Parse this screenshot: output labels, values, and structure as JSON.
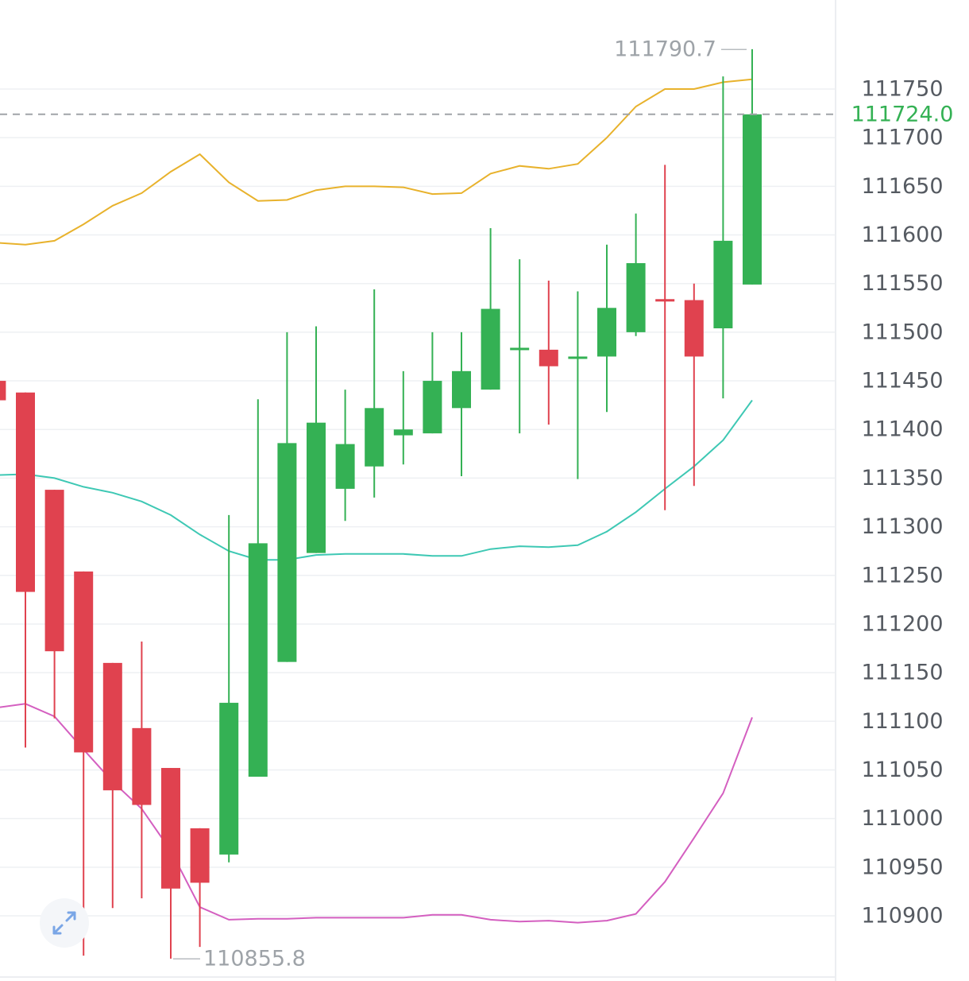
{
  "chart_data": {
    "type": "candlestick",
    "yaxis": {
      "ticks": [
        111750,
        111700,
        111650,
        111600,
        111550,
        111500,
        111450,
        111400,
        111350,
        111300,
        111250,
        111200,
        111150,
        111100,
        111050,
        111000,
        110950,
        110900
      ],
      "tick_labels": [
        "111750",
        "111700",
        "111650",
        "111600",
        "111550",
        "111500",
        "111450",
        "111400",
        "111350",
        "111300",
        "111250",
        "111200",
        "111150",
        "111100",
        "111050",
        "111000",
        "110950",
        "110900"
      ],
      "position": "right",
      "ylim": [
        110835,
        111835
      ]
    },
    "grid": true,
    "candles": [
      {
        "open": 111450,
        "close": 111430,
        "high": 111450,
        "low": 111430
      },
      {
        "open": 111438,
        "close": 111233,
        "high": 111438,
        "low": 111073
      },
      {
        "open": 111338,
        "close": 111172,
        "high": 111338,
        "low": 111103
      },
      {
        "open": 111254,
        "close": 111068,
        "high": 111254,
        "low": 110859
      },
      {
        "open": 111160,
        "close": 111029,
        "high": 111160,
        "low": 110908
      },
      {
        "open": 111093,
        "close": 111014,
        "high": 111182,
        "low": 110918
      },
      {
        "open": 111052,
        "close": 110928,
        "high": 111052,
        "low": 110856
      },
      {
        "open": 110990,
        "close": 110934,
        "high": 110990,
        "low": 110868
      },
      {
        "open": 110963,
        "close": 111119,
        "high": 111312,
        "low": 110955
      },
      {
        "open": 111043,
        "close": 111283,
        "high": 111431,
        "low": 111043
      },
      {
        "open": 111161,
        "close": 111386,
        "high": 111500,
        "low": 111161
      },
      {
        "open": 111273,
        "close": 111407,
        "high": 111506,
        "low": 111273
      },
      {
        "open": 111339,
        "close": 111385,
        "high": 111441,
        "low": 111306
      },
      {
        "open": 111362,
        "close": 111422,
        "high": 111544,
        "low": 111330
      },
      {
        "open": 111394,
        "close": 111400,
        "high": 111460,
        "low": 111364
      },
      {
        "open": 111396,
        "close": 111450,
        "high": 111500,
        "low": 111396
      },
      {
        "open": 111422,
        "close": 111460,
        "high": 111500,
        "low": 111352
      },
      {
        "open": 111441,
        "close": 111524,
        "high": 111607,
        "low": 111441
      },
      {
        "open": 111483,
        "close": 111484,
        "high": 111575,
        "low": 111396
      },
      {
        "open": 111482,
        "close": 111465,
        "high": 111553,
        "low": 111405
      },
      {
        "open": 111474,
        "close": 111475,
        "high": 111542,
        "low": 111349
      },
      {
        "open": 111475,
        "close": 111525,
        "high": 111590,
        "low": 111418
      },
      {
        "open": 111500,
        "close": 111571,
        "high": 111622,
        "low": 111496
      },
      {
        "open": 111534,
        "close": 111532,
        "high": 111672,
        "low": 111317
      },
      {
        "open": 111533,
        "close": 111475,
        "high": 111550,
        "low": 111342
      },
      {
        "open": 111504,
        "close": 111594,
        "high": 111763,
        "low": 111432
      },
      {
        "open": 111549,
        "close": 111724,
        "high": 111791,
        "low": 111549
      }
    ],
    "upper_band": [
      111592,
      111590,
      111594,
      111611,
      111630,
      111643,
      111665,
      111683,
      111654,
      111635,
      111636,
      111646,
      111650,
      111650,
      111649,
      111642,
      111643,
      111663,
      111671,
      111668,
      111673,
      111700,
      111732,
      111750,
      111750,
      111757,
      111760
    ],
    "middle_band": [
      111353,
      111354,
      111350,
      111341,
      111335,
      111326,
      111312,
      111292,
      111275,
      111266,
      111266,
      111271,
      111272,
      111272,
      111272,
      111270,
      111270,
      111277,
      111280,
      111279,
      111281,
      111295,
      111315,
      111339,
      111362,
      111389,
      111430
    ],
    "lower_band": [
      111114,
      111118,
      111105,
      111071,
      111038,
      111010,
      110967,
      110909,
      110896,
      110897,
      110897,
      110898,
      110898,
      110898,
      110898,
      110901,
      110901,
      110896,
      110894,
      110895,
      110893,
      110895,
      110902,
      110935,
      110980,
      111026,
      111104
    ],
    "current_price": "111724.0",
    "high_label": "111790.7",
    "high_value": 111790.7,
    "low_label": "110855.8",
    "low_value": 110855.8
  },
  "colors": {
    "up": "#34b154",
    "down": "#e0424f",
    "upper_band": "#e8b22c",
    "middle_band": "#3ec8b4",
    "lower_band": "#d45fc0",
    "grid": "#eef0f3",
    "price_line": "#a0a4a8",
    "price_label": "#34b154"
  },
  "controls": {
    "expand_icon": "expand-arrows-icon"
  }
}
